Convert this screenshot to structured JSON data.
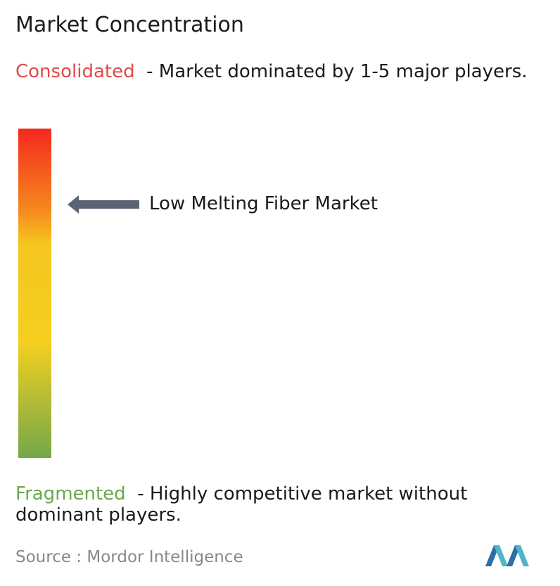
{
  "header": {
    "title": "Market Concentration"
  },
  "consolidated": {
    "label": "Consolidated",
    "description": "- Market dominated by 1-5 major players."
  },
  "marker": {
    "label": "Low Melting Fiber Market"
  },
  "fragmented": {
    "label": "Fragmented",
    "description": "- Highly competitive market without dominant players."
  },
  "footer": {
    "source_label": "Source :",
    "source": "Mordor Intelligence"
  }
}
